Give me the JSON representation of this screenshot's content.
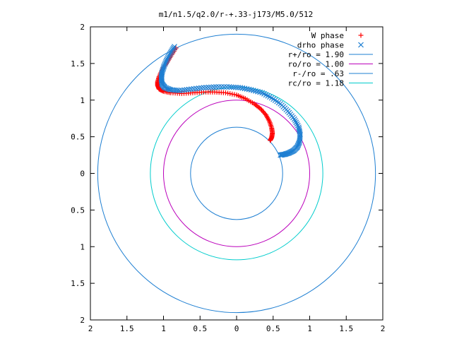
{
  "chart_data": {
    "type": "scatter",
    "title": "m1/n1.5/q2.0/r-+.33-j173/M5.0/512",
    "xlabel": "",
    "ylabel": "",
    "xlim": [
      -2,
      2
    ],
    "ylim": [
      -2,
      2
    ],
    "x_tick_values": [
      -2,
      -1.5,
      -1,
      -0.5,
      0,
      0.5,
      1,
      1.5,
      2
    ],
    "x_tick_labels": [
      "2",
      "1.5",
      "1",
      "0.5",
      "0",
      "0.5",
      "1",
      "1.5",
      "2"
    ],
    "y_tick_values": [
      2,
      1.5,
      1,
      0.5,
      0,
      -0.5,
      -1,
      -1.5,
      -2
    ],
    "y_tick_labels": [
      "2",
      "1.5",
      "1",
      "0.5",
      "0",
      "0.5",
      "1",
      "1.5",
      "2"
    ],
    "grid": false,
    "legend_position": "top-right",
    "series": [
      {
        "name": "W phase",
        "kind": "points",
        "marker": "plus",
        "color": "#ff0000",
        "points": [
          [
            -0.83,
            1.71
          ],
          [
            -0.9,
            1.6
          ],
          [
            -0.96,
            1.5
          ],
          [
            -1.02,
            1.41
          ],
          [
            -1.06,
            1.32
          ],
          [
            -1.08,
            1.25
          ],
          [
            -1.08,
            1.2
          ],
          [
            -1.06,
            1.15
          ],
          [
            -1.0,
            1.12
          ],
          [
            -0.9,
            1.1
          ],
          [
            -0.75,
            1.09
          ],
          [
            -0.6,
            1.1
          ],
          [
            -0.45,
            1.11
          ],
          [
            -0.3,
            1.11
          ],
          [
            -0.15,
            1.1
          ],
          [
            0.0,
            1.07
          ],
          [
            0.12,
            1.02
          ],
          [
            0.24,
            0.95
          ],
          [
            0.33,
            0.88
          ],
          [
            0.4,
            0.8
          ],
          [
            0.45,
            0.71
          ],
          [
            0.48,
            0.62
          ],
          [
            0.49,
            0.55
          ],
          [
            0.48,
            0.49
          ],
          [
            0.46,
            0.45
          ]
        ]
      },
      {
        "name": "drho phase",
        "kind": "points",
        "marker": "cross",
        "color": "#1e7fd2",
        "points": [
          [
            -0.85,
            1.73
          ],
          [
            -0.9,
            1.65
          ],
          [
            -0.95,
            1.56
          ],
          [
            -0.99,
            1.47
          ],
          [
            -1.02,
            1.38
          ],
          [
            -1.03,
            1.3
          ],
          [
            -1.02,
            1.22
          ],
          [
            -0.98,
            1.17
          ],
          [
            -0.9,
            1.14
          ],
          [
            -0.78,
            1.13
          ],
          [
            -0.62,
            1.15
          ],
          [
            -0.45,
            1.17
          ],
          [
            -0.28,
            1.18
          ],
          [
            -0.1,
            1.18
          ],
          [
            0.05,
            1.17
          ],
          [
            0.2,
            1.14
          ],
          [
            0.35,
            1.1
          ],
          [
            0.48,
            1.03
          ],
          [
            0.6,
            0.95
          ],
          [
            0.7,
            0.85
          ],
          [
            0.79,
            0.74
          ],
          [
            0.85,
            0.63
          ],
          [
            0.87,
            0.53
          ],
          [
            0.86,
            0.43
          ],
          [
            0.83,
            0.36
          ],
          [
            0.78,
            0.31
          ],
          [
            0.72,
            0.28
          ],
          [
            0.66,
            0.26
          ],
          [
            0.6,
            0.25
          ]
        ]
      },
      {
        "name": "r+/ro = 1.90",
        "kind": "circle",
        "radius": 1.9,
        "color": "#1e7fd2"
      },
      {
        "name": "ro/ro = 1.00",
        "kind": "circle",
        "radius": 1.0,
        "color": "#bb00bb"
      },
      {
        "name": "r-/ro = .63",
        "kind": "circle",
        "radius": 0.63,
        "color": "#1e7fd2"
      },
      {
        "name": "rc/ro = 1.18",
        "kind": "circle",
        "radius": 1.18,
        "color": "#00cccc"
      }
    ]
  }
}
